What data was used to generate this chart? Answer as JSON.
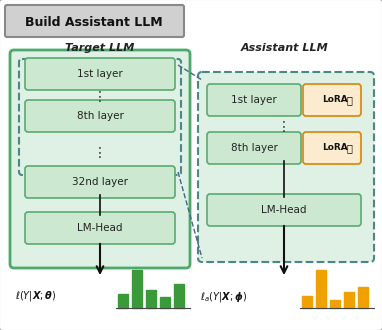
{
  "title": "Build Assistant LLM",
  "outer_bg": "#f5f5f5",
  "fig_bg": "#ffffff",
  "target_llm_label": "Target LLM",
  "assistant_llm_label": "Assistant LLM",
  "target_layers": [
    "1st layer",
    "8th layer",
    "32nd layer",
    "LM-Head"
  ],
  "assistant_layers": [
    "1st layer",
    "8th layer",
    "LM-Head"
  ],
  "target_outer_fill": "#dff0e4",
  "target_outer_border": "#4aaa6a",
  "target_inner_fill": "#cce8d0",
  "target_inner_border": "#5aaa70",
  "dashed_inner_border": "#4a8888",
  "asst_outer_fill": "#dff0e4",
  "asst_outer_border": "#4a8888",
  "asst_inner_fill": "#cce8d0",
  "asst_inner_border": "#5aaa70",
  "lora_fill": "#fdebd0",
  "lora_border": "#d4860a",
  "bar_green": "#3a9a3a",
  "bar_orange": "#f0a000",
  "green_bars": [
    0.38,
    1.0,
    0.48,
    0.28,
    0.62
  ],
  "orange_bars": [
    0.32,
    1.0,
    0.22,
    0.42,
    0.55
  ],
  "arrow_color": "#111111",
  "text_color": "#222222",
  "title_bg": "#d0d0d0",
  "title_border": "#888888",
  "outer_border_color": "#aaaaaa",
  "connector_color": "#446688"
}
